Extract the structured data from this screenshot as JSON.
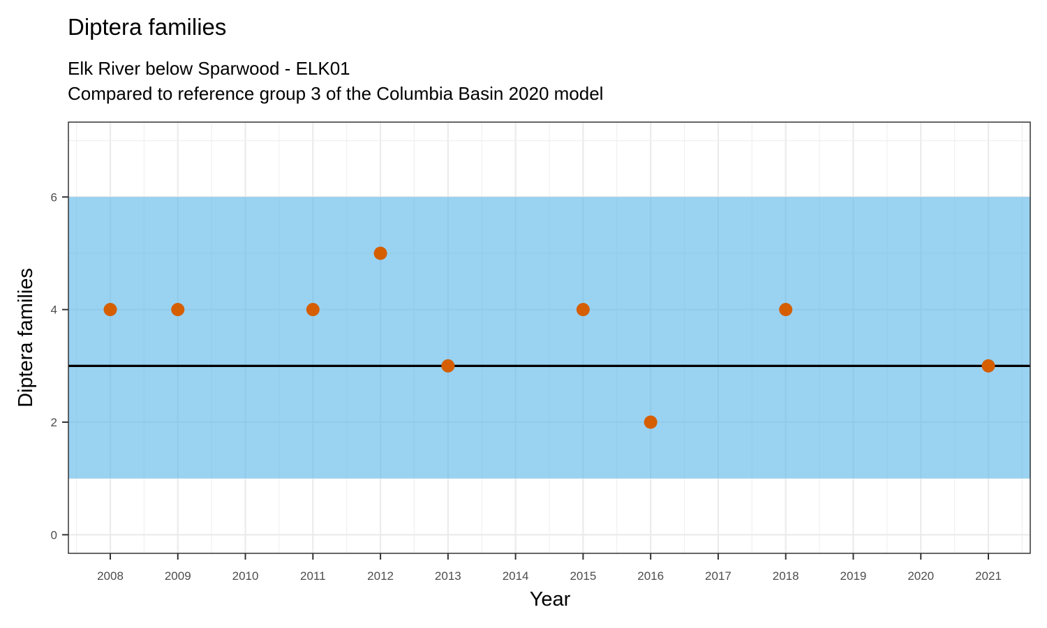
{
  "chart_data": {
    "type": "scatter",
    "title": "Diptera families",
    "subtitle_lines": [
      "Elk River below Sparwood - ELK01",
      "Compared to reference group 3 of the Columbia Basin 2020 model"
    ],
    "xlabel": "Year",
    "ylabel": "Diptera families",
    "x": [
      2008,
      2009,
      2011,
      2012,
      2013,
      2015,
      2016,
      2018,
      2021
    ],
    "y": [
      4,
      4,
      4,
      5,
      3,
      4,
      2,
      4,
      3
    ],
    "x_ticks": [
      "2008",
      "2009",
      "2010",
      "2011",
      "2012",
      "2013",
      "2014",
      "2015",
      "2016",
      "2017",
      "2018",
      "2019",
      "2020",
      "2021"
    ],
    "y_ticks": [
      0,
      2,
      4,
      6
    ],
    "xlim": [
      2007.38,
      2021.62
    ],
    "ylim": [
      -0.33,
      7.33
    ],
    "reference_band": [
      1,
      6
    ],
    "reference_line": 3,
    "grid": true,
    "colors": {
      "points": "#D55E00",
      "band": "#56B4E9",
      "line": "#000000"
    }
  }
}
